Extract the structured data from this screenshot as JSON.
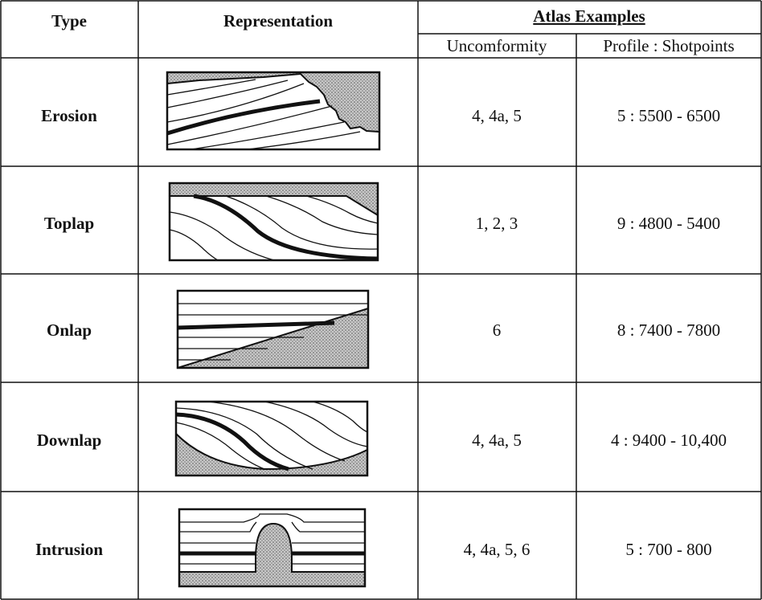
{
  "header": {
    "type": "Type",
    "representation": "Representation",
    "atlas_examples": "Atlas Examples",
    "uncomformity": "Uncomformity",
    "profile_shotpoints": "Profile : Shotpoints"
  },
  "rows": [
    {
      "type": "Erosion",
      "uncomformity": "4, 4a, 5",
      "profile_shotpoints": "5 : 5500 - 6500"
    },
    {
      "type": "Toplap",
      "uncomformity": "1, 2, 3",
      "profile_shotpoints": "9 : 4800 - 5400"
    },
    {
      "type": "Onlap",
      "uncomformity": "6",
      "profile_shotpoints": "8 : 7400 - 7800"
    },
    {
      "type": "Downlap",
      "uncomformity": "4, 4a, 5",
      "profile_shotpoints": "4 : 9400 - 10,400"
    },
    {
      "type": "Intrusion",
      "uncomformity": "4, 4a, 5, 6",
      "profile_shotpoints": "5 : 700 - 800"
    }
  ]
}
